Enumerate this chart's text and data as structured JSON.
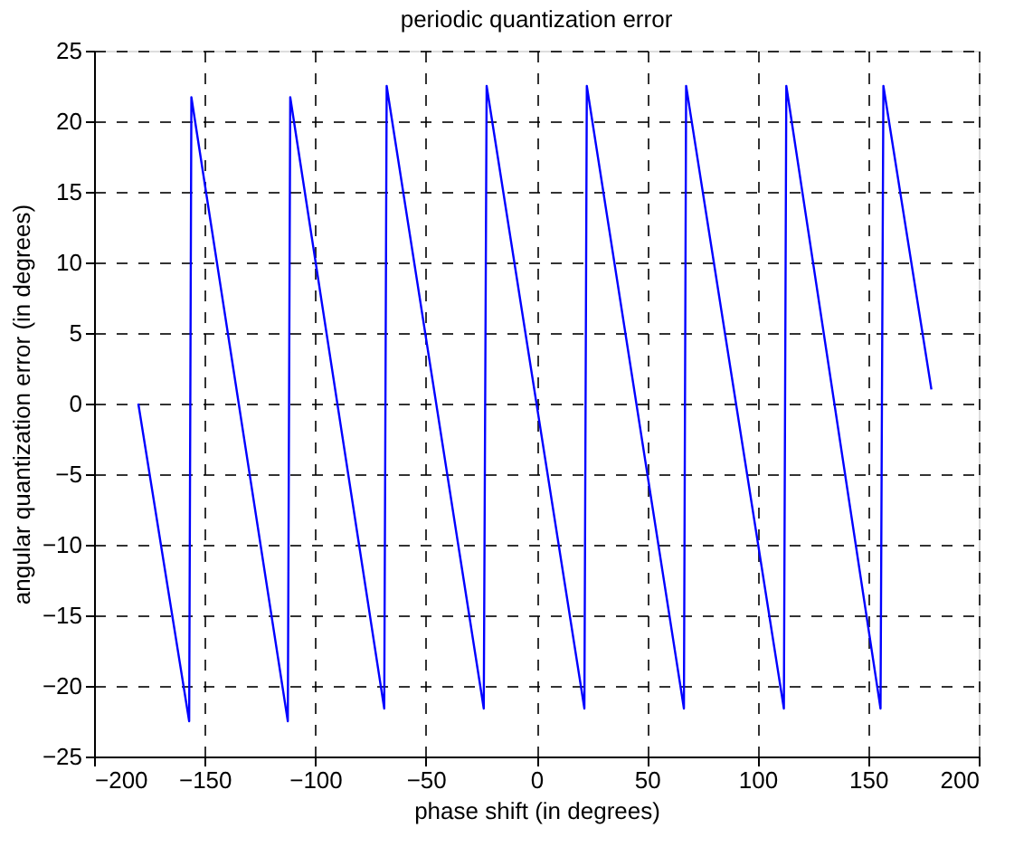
{
  "chart_data": {
    "type": "line",
    "title": "periodic quantization error",
    "xlabel": "phase shift (in degrees)",
    "ylabel": "angular quantization error (in degrees)",
    "x": [
      -180,
      -157,
      -156,
      -112.4,
      -111.3,
      -68.8,
      -67.7,
      -23.8,
      -22.5,
      21.7,
      22.8,
      66.7,
      67.7,
      111.9,
      113,
      155.6,
      156.9,
      178.6
    ],
    "series": [
      {
        "color": "#0000ff",
        "values": [
          0,
          -22.5,
          21.7,
          -22.5,
          21.7,
          -21.6,
          22.5,
          -21.6,
          22.5,
          -21.6,
          22.5,
          -21.6,
          22.5,
          -21.6,
          22.5,
          -21.6,
          22.5,
          1.0
        ]
      }
    ],
    "xlim": [
      -200,
      200
    ],
    "xticks": [
      -200,
      -150,
      -100,
      -50,
      0,
      50,
      100,
      150,
      200
    ],
    "ylim": [
      -25,
      25
    ],
    "yticks": [
      -25,
      -20,
      -15,
      -10,
      -5,
      0,
      5,
      10,
      15,
      20,
      25
    ],
    "grid": true,
    "line_style": "solid",
    "marker": "none",
    "legend": false
  }
}
